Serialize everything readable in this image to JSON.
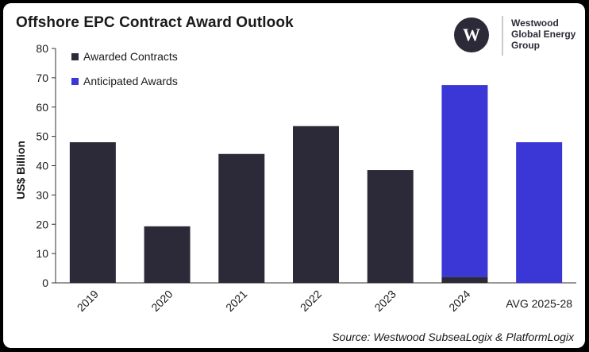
{
  "title": "Offshore EPC Contract Award Outlook",
  "logo": {
    "mark": "W",
    "lines": [
      "Westwood",
      "Global Energy",
      "Group"
    ]
  },
  "source": "Source: Westwood SubseaLogix & PlatformLogix",
  "colors": {
    "awarded": "#2c2a38",
    "anticipated": "#3b36d6",
    "axis": "#333333",
    "text": "#1a1a1a"
  },
  "chart_data": {
    "type": "bar",
    "stacked": true,
    "categories": [
      "2019",
      "2020",
      "2021",
      "2022",
      "2023",
      "2024",
      "AVG 2025-28"
    ],
    "series": [
      {
        "name": "Awarded Contracts",
        "values": [
          48,
          19.3,
          44,
          53.5,
          38.5,
          2,
          0
        ]
      },
      {
        "name": "Anticipated Awards",
        "values": [
          0,
          0,
          0,
          0,
          0,
          65.5,
          48
        ]
      }
    ],
    "ylabel": "US$ Billion",
    "xlabel": "",
    "ylim": [
      0,
      80
    ],
    "yticks": [
      0,
      10,
      20,
      30,
      40,
      50,
      60,
      70,
      80
    ],
    "legend": "top-left",
    "grid": false
  }
}
